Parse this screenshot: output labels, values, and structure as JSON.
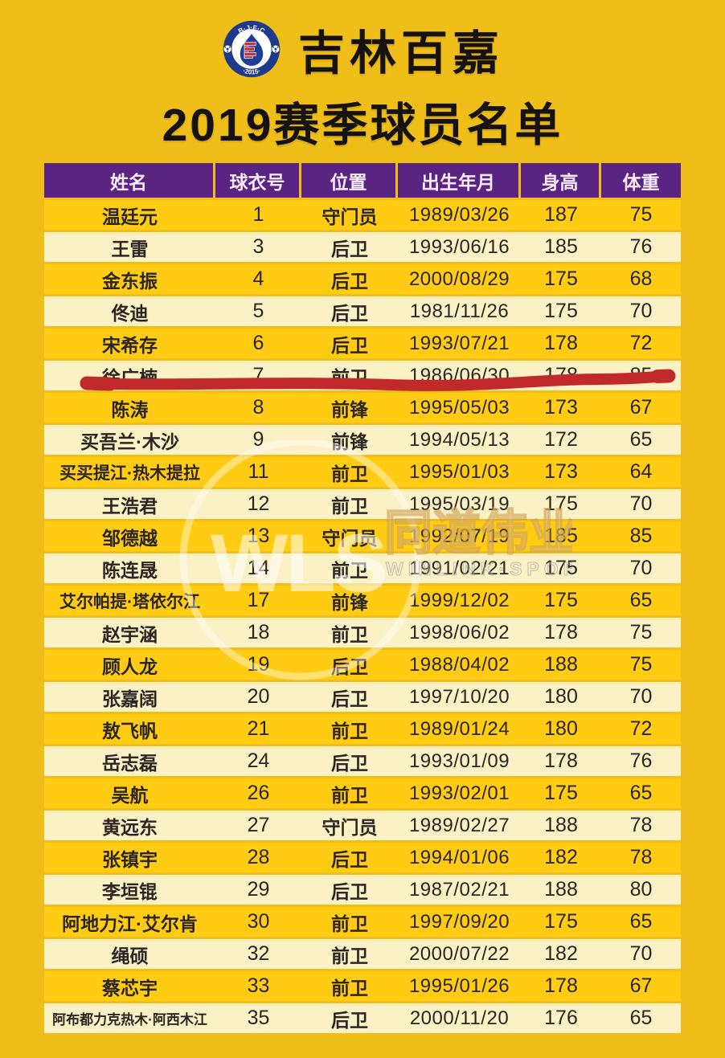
{
  "page": {
    "background_color": "#F0BE18",
    "gold_row_color": "#FFCC13",
    "pale_row_color": "#FAF1C5",
    "header_purple": "#5A2482",
    "annotation_red": "#C1292B"
  },
  "header": {
    "club_name": "吉林百嘉",
    "subtitle": "2019赛季球员名单",
    "logo": {
      "top_text": "B·J·F·C",
      "bottom_text": "·2015·",
      "ring_color": "#1E3A8C",
      "drop_color": "#1C3E96",
      "bar_color": "#C4303C"
    }
  },
  "watermark": {
    "monogram": "WLS",
    "cn": "同道伟业",
    "en": "WINLINK·SPORTS"
  },
  "table": {
    "columns": [
      "姓名",
      "球衣号",
      "位置",
      "出生年月",
      "身高",
      "体重"
    ],
    "rows": [
      {
        "name": "温廷元",
        "number": "1",
        "position": "守门员",
        "birth": "1989/03/26",
        "height": "187",
        "weight": "75"
      },
      {
        "name": "王雷",
        "number": "3",
        "position": "后卫",
        "birth": "1993/06/16",
        "height": "185",
        "weight": "76"
      },
      {
        "name": "金东振",
        "number": "4",
        "position": "后卫",
        "birth": "2000/08/29",
        "height": "175",
        "weight": "68"
      },
      {
        "name": "佟迪",
        "number": "5",
        "position": "后卫",
        "birth": "1981/11/26",
        "height": "175",
        "weight": "70"
      },
      {
        "name": "宋希存",
        "number": "6",
        "position": "后卫",
        "birth": "1993/07/21",
        "height": "178",
        "weight": "72"
      },
      {
        "name": "徐广楠",
        "number": "7",
        "position": "前卫",
        "birth": "1986/06/30",
        "height": "178",
        "weight": "85",
        "underlined": true
      },
      {
        "name": "陈涛",
        "number": "8",
        "position": "前锋",
        "birth": "1995/05/03",
        "height": "173",
        "weight": "67"
      },
      {
        "name": "买吾兰·木沙",
        "number": "9",
        "position": "前锋",
        "birth": "1994/05/13",
        "height": "172",
        "weight": "65"
      },
      {
        "name": "买买提江·热木提拉",
        "number": "11",
        "position": "前卫",
        "birth": "1995/01/03",
        "height": "173",
        "weight": "64",
        "name_size": "compact"
      },
      {
        "name": "王浩君",
        "number": "12",
        "position": "前卫",
        "birth": "1995/03/19",
        "height": "175",
        "weight": "70"
      },
      {
        "name": "邹德越",
        "number": "13",
        "position": "守门员",
        "birth": "1992/07/19",
        "height": "185",
        "weight": "85"
      },
      {
        "name": "陈连晟",
        "number": "14",
        "position": "前卫",
        "birth": "1991/02/21",
        "height": "175",
        "weight": "70"
      },
      {
        "name": "艾尔帕提·塔依尔江",
        "number": "17",
        "position": "前锋",
        "birth": "1999/12/02",
        "height": "175",
        "weight": "65",
        "name_size": "compact"
      },
      {
        "name": "赵宇涵",
        "number": "18",
        "position": "前卫",
        "birth": "1998/06/02",
        "height": "178",
        "weight": "75"
      },
      {
        "name": "顾人龙",
        "number": "19",
        "position": "后卫",
        "birth": "1988/04/02",
        "height": "188",
        "weight": "75"
      },
      {
        "name": "张嘉阔",
        "number": "20",
        "position": "后卫",
        "birth": "1997/10/20",
        "height": "180",
        "weight": "70"
      },
      {
        "name": "敖飞帆",
        "number": "21",
        "position": "前卫",
        "birth": "1989/01/24",
        "height": "180",
        "weight": "72"
      },
      {
        "name": "岳志磊",
        "number": "24",
        "position": "后卫",
        "birth": "1993/01/09",
        "height": "178",
        "weight": "76"
      },
      {
        "name": "吴航",
        "number": "26",
        "position": "前卫",
        "birth": "1993/02/01",
        "height": "175",
        "weight": "65"
      },
      {
        "name": "黄远东",
        "number": "27",
        "position": "守门员",
        "birth": "1989/02/27",
        "height": "188",
        "weight": "78"
      },
      {
        "name": "张镇宇",
        "number": "28",
        "position": "后卫",
        "birth": "1994/01/06",
        "height": "182",
        "weight": "78"
      },
      {
        "name": "李垣锟",
        "number": "29",
        "position": "后卫",
        "birth": "1987/02/21",
        "height": "188",
        "weight": "80"
      },
      {
        "name": "阿地力江·艾尔肯",
        "number": "30",
        "position": "前卫",
        "birth": "1997/09/20",
        "height": "175",
        "weight": "65"
      },
      {
        "name": "绳硕",
        "number": "32",
        "position": "前卫",
        "birth": "2000/07/22",
        "height": "182",
        "weight": "70"
      },
      {
        "name": "蔡芯宇",
        "number": "33",
        "position": "前卫",
        "birth": "1995/01/26",
        "height": "178",
        "weight": "67"
      },
      {
        "name": "阿布都力克热木·阿西木江",
        "number": "35",
        "position": "后卫",
        "birth": "2000/11/20",
        "height": "176",
        "weight": "65",
        "name_size": "tiny"
      }
    ],
    "annotation": {
      "type": "hand-drawn-red-underline",
      "under_row": "徐广楠"
    }
  }
}
